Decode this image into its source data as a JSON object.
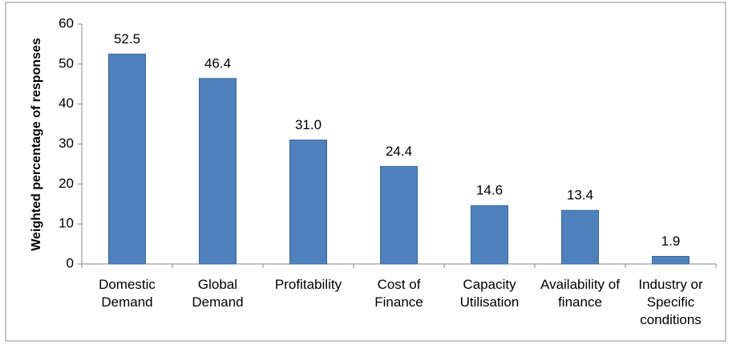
{
  "chart_data": {
    "type": "bar",
    "y_label": "Weighted percentage of responses",
    "categories": [
      "Domestic Demand",
      "Global Demand",
      "Profitability",
      "Cost of Finance",
      "Capacity Utilisation",
      "Availability of finance",
      "Industry or Specific conditions"
    ],
    "values": [
      52.5,
      46.4,
      31.0,
      24.4,
      14.6,
      13.4,
      1.9
    ],
    "value_labels": [
      "52.5",
      "46.4",
      "31.0",
      "24.4",
      "14.6",
      "13.4",
      "1.9"
    ],
    "color": "#4f81bd",
    "ylim": [
      0,
      60
    ],
    "yticks": [
      0,
      10,
      20,
      30,
      40,
      50,
      60
    ],
    "grid": false
  }
}
